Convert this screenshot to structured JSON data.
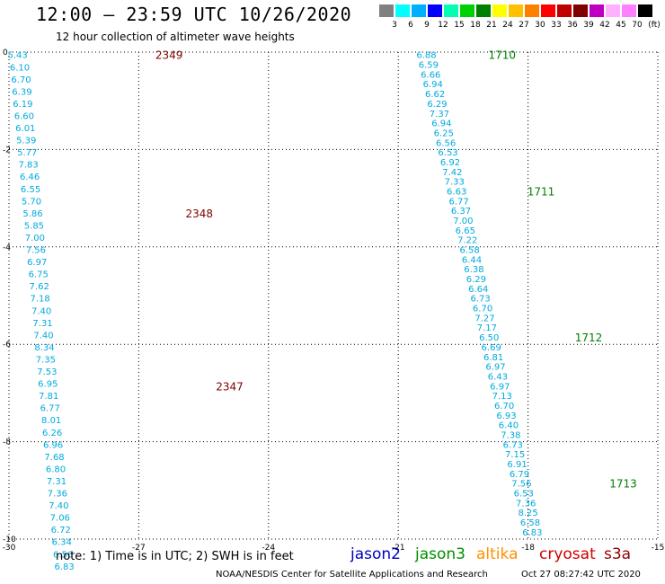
{
  "header": {
    "title": "12:00 — 23:59 UTC 10/26/2020",
    "subtitle": "12 hour collection of altimeter wave heights"
  },
  "scale": {
    "unit": "(ft)",
    "colors": [
      "#808080",
      "#00ffff",
      "#00b0ff",
      "#0000ff",
      "#00ffb0",
      "#00d000",
      "#008000",
      "#ffff00",
      "#ffc000",
      "#ff8000",
      "#ff0000",
      "#c00000",
      "#800000",
      "#c000c0",
      "#ffb0ff",
      "#ff80ff",
      "#000000"
    ],
    "labels": [
      "3",
      "6",
      "9",
      "12",
      "15",
      "18",
      "21",
      "24",
      "27",
      "30",
      "33",
      "36",
      "39",
      "42",
      "45",
      "70"
    ]
  },
  "map": {
    "x_ticks": [
      "-30",
      "-27",
      "-24",
      "-21",
      "-18",
      "-15"
    ],
    "y_ticks": [
      "0",
      "-2",
      "-4",
      "-6",
      "-8",
      "-10"
    ]
  },
  "tracks": [
    {
      "name": "cryosat",
      "color": "#00aadd",
      "values": [
        {
          "lon": -29.8,
          "lat": -0.05,
          "v": "5.43"
        },
        {
          "lon": -29.75,
          "lat": -0.3,
          "v": "6.10"
        },
        {
          "lon": -29.72,
          "lat": -0.55,
          "v": "6.70"
        },
        {
          "lon": -29.7,
          "lat": -0.8,
          "v": "6.39"
        },
        {
          "lon": -29.68,
          "lat": -1.05,
          "v": "6.19"
        },
        {
          "lon": -29.65,
          "lat": -1.3,
          "v": "6.60"
        },
        {
          "lon": -29.62,
          "lat": -1.55,
          "v": "6.01"
        },
        {
          "lon": -29.6,
          "lat": -1.8,
          "v": "5.39"
        },
        {
          "lon": -29.58,
          "lat": -2.05,
          "v": "5.77"
        },
        {
          "lon": -29.55,
          "lat": -2.3,
          "v": "7.83"
        },
        {
          "lon": -29.52,
          "lat": -2.55,
          "v": "6.46"
        },
        {
          "lon": -29.5,
          "lat": -2.8,
          "v": "6.55"
        },
        {
          "lon": -29.48,
          "lat": -3.05,
          "v": "5.70"
        },
        {
          "lon": -29.45,
          "lat": -3.3,
          "v": "5.86"
        },
        {
          "lon": -29.42,
          "lat": -3.55,
          "v": "5.85"
        },
        {
          "lon": -29.4,
          "lat": -3.8,
          "v": "7.00"
        },
        {
          "lon": -29.38,
          "lat": -4.05,
          "v": "7.56"
        },
        {
          "lon": -29.35,
          "lat": -4.3,
          "v": "6.97"
        },
        {
          "lon": -29.32,
          "lat": -4.55,
          "v": "6.75"
        },
        {
          "lon": -29.3,
          "lat": -4.8,
          "v": "7.62"
        },
        {
          "lon": -29.28,
          "lat": -5.05,
          "v": "7.18"
        },
        {
          "lon": -29.25,
          "lat": -5.3,
          "v": "7.40"
        },
        {
          "lon": -29.22,
          "lat": -5.55,
          "v": "7.31"
        },
        {
          "lon": -29.2,
          "lat": -5.8,
          "v": "7.40"
        },
        {
          "lon": -29.18,
          "lat": -6.05,
          "v": "8.34"
        },
        {
          "lon": -29.15,
          "lat": -6.3,
          "v": "7.35"
        },
        {
          "lon": -29.12,
          "lat": -6.55,
          "v": "7.53"
        },
        {
          "lon": -29.1,
          "lat": -6.8,
          "v": "6.95"
        },
        {
          "lon": -29.08,
          "lat": -7.05,
          "v": "7.81"
        },
        {
          "lon": -29.05,
          "lat": -7.3,
          "v": "6.77"
        },
        {
          "lon": -29.02,
          "lat": -7.55,
          "v": "8.01"
        },
        {
          "lon": -29.0,
          "lat": -7.8,
          "v": "6.26"
        },
        {
          "lon": -28.98,
          "lat": -8.05,
          "v": "6.96"
        },
        {
          "lon": -28.95,
          "lat": -8.3,
          "v": "7.68"
        },
        {
          "lon": -28.92,
          "lat": -8.55,
          "v": "6.80"
        },
        {
          "lon": -28.9,
          "lat": -8.8,
          "v": "7.31"
        },
        {
          "lon": -28.88,
          "lat": -9.05,
          "v": "7.36"
        },
        {
          "lon": -28.85,
          "lat": -9.3,
          "v": "7.40"
        },
        {
          "lon": -28.82,
          "lat": -9.55,
          "v": "7.06"
        },
        {
          "lon": -28.8,
          "lat": -9.8,
          "v": "6.72"
        },
        {
          "lon": -28.78,
          "lat": -10.05,
          "v": "6.34"
        },
        {
          "lon": -28.75,
          "lat": -10.3,
          "v": "6.56"
        },
        {
          "lon": -28.72,
          "lat": -10.55,
          "v": "6.83"
        }
      ],
      "time_labels": [
        {
          "lon": -26.3,
          "lat": -0.05,
          "t": "2349"
        },
        {
          "lon": -25.6,
          "lat": -3.3,
          "t": "2348"
        },
        {
          "lon": -24.9,
          "lat": -6.85,
          "t": "2347"
        }
      ],
      "time_color": "#800000"
    },
    {
      "name": "jason3",
      "color": "#00aadd",
      "values": [
        {
          "lon": -20.35,
          "lat": -0.05,
          "v": "6.88"
        },
        {
          "lon": -20.3,
          "lat": -0.25,
          "v": "6.59"
        },
        {
          "lon": -20.25,
          "lat": -0.45,
          "v": "6.66"
        },
        {
          "lon": -20.2,
          "lat": -0.65,
          "v": "6.94"
        },
        {
          "lon": -20.15,
          "lat": -0.85,
          "v": "6.62"
        },
        {
          "lon": -20.1,
          "lat": -1.05,
          "v": "6.29"
        },
        {
          "lon": -20.05,
          "lat": -1.25,
          "v": "7.37"
        },
        {
          "lon": -20.0,
          "lat": -1.45,
          "v": "6.94"
        },
        {
          "lon": -19.95,
          "lat": -1.65,
          "v": "6.25"
        },
        {
          "lon": -19.9,
          "lat": -1.85,
          "v": "6.56"
        },
        {
          "lon": -19.85,
          "lat": -2.05,
          "v": "6.53"
        },
        {
          "lon": -19.8,
          "lat": -2.25,
          "v": "6.92"
        },
        {
          "lon": -19.75,
          "lat": -2.45,
          "v": "7.42"
        },
        {
          "lon": -19.7,
          "lat": -2.65,
          "v": "7.33"
        },
        {
          "lon": -19.65,
          "lat": -2.85,
          "v": "6.63"
        },
        {
          "lon": -19.6,
          "lat": -3.05,
          "v": "6.77"
        },
        {
          "lon": -19.55,
          "lat": -3.25,
          "v": "6.37"
        },
        {
          "lon": -19.5,
          "lat": -3.45,
          "v": "7.00"
        },
        {
          "lon": -19.45,
          "lat": -3.65,
          "v": "6.65"
        },
        {
          "lon": -19.4,
          "lat": -3.85,
          "v": "7.22"
        },
        {
          "lon": -19.35,
          "lat": -4.05,
          "v": "6.58"
        },
        {
          "lon": -19.3,
          "lat": -4.25,
          "v": "6.44"
        },
        {
          "lon": -19.25,
          "lat": -4.45,
          "v": "6.38"
        },
        {
          "lon": -19.2,
          "lat": -4.65,
          "v": "6.29"
        },
        {
          "lon": -19.15,
          "lat": -4.85,
          "v": "6.64"
        },
        {
          "lon": -19.1,
          "lat": -5.05,
          "v": "6.73"
        },
        {
          "lon": -19.05,
          "lat": -5.25,
          "v": "6.70"
        },
        {
          "lon": -19.0,
          "lat": -5.45,
          "v": "7.27"
        },
        {
          "lon": -18.95,
          "lat": -5.65,
          "v": "7.17"
        },
        {
          "lon": -18.9,
          "lat": -5.85,
          "v": "6.50"
        },
        {
          "lon": -18.85,
          "lat": -6.05,
          "v": "6.69"
        },
        {
          "lon": -18.8,
          "lat": -6.25,
          "v": "6.81"
        },
        {
          "lon": -18.75,
          "lat": -6.45,
          "v": "6.97"
        },
        {
          "lon": -18.7,
          "lat": -6.65,
          "v": "6.43"
        },
        {
          "lon": -18.65,
          "lat": -6.85,
          "v": "6.97"
        },
        {
          "lon": -18.6,
          "lat": -7.05,
          "v": "7.13"
        },
        {
          "lon": -18.55,
          "lat": -7.25,
          "v": "6.70"
        },
        {
          "lon": -18.5,
          "lat": -7.45,
          "v": "6.93"
        },
        {
          "lon": -18.45,
          "lat": -7.65,
          "v": "6.40"
        },
        {
          "lon": -18.4,
          "lat": -7.85,
          "v": "7.38"
        },
        {
          "lon": -18.35,
          "lat": -8.05,
          "v": "6.73"
        },
        {
          "lon": -18.3,
          "lat": -8.25,
          "v": "7.15"
        },
        {
          "lon": -18.25,
          "lat": -8.45,
          "v": "6.91"
        },
        {
          "lon": -18.2,
          "lat": -8.65,
          "v": "6.79"
        },
        {
          "lon": -18.15,
          "lat": -8.85,
          "v": "7.56"
        },
        {
          "lon": -18.1,
          "lat": -9.05,
          "v": "6.53"
        },
        {
          "lon": -18.05,
          "lat": -9.25,
          "v": "7.36"
        },
        {
          "lon": -18.0,
          "lat": -9.45,
          "v": "8.25"
        },
        {
          "lon": -17.95,
          "lat": -9.65,
          "v": "6.58"
        },
        {
          "lon": -17.9,
          "lat": -9.85,
          "v": "6.83"
        }
      ],
      "time_labels": [
        {
          "lon": -18.6,
          "lat": -0.05,
          "t": "1710"
        },
        {
          "lon": -17.7,
          "lat": -2.85,
          "t": "1711"
        },
        {
          "lon": -16.6,
          "lat": -5.85,
          "t": "1712"
        },
        {
          "lon": -15.8,
          "lat": -8.85,
          "t": "1713"
        }
      ],
      "time_color": "#008000"
    }
  ],
  "footer": {
    "note": "note: 1) Time is in UTC; 2) SWH is in feet",
    "satellites": [
      {
        "name": "jason2",
        "color": "#0000c0"
      },
      {
        "name": "jason3",
        "color": "#009000"
      },
      {
        "name": "altika",
        "color": "#ff9000"
      },
      {
        "name": "cryosat",
        "color": "#d00000"
      },
      {
        "name": "s3a",
        "color": "#900000"
      }
    ],
    "credit": "NOAA/NESDIS Center for Satellite Applications and Research",
    "timestamp": "Oct 27 08:27:42 UTC 2020"
  }
}
